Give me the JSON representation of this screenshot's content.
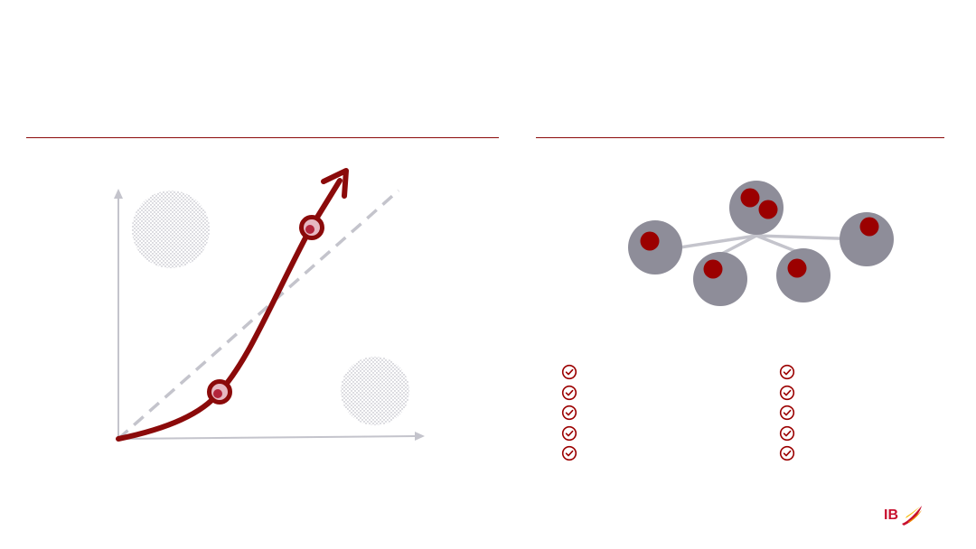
{
  "colors": {
    "accent": "#8b0a0a",
    "growth_curve": "#8b0a0a",
    "axis": "#c4c4cc",
    "dashed_line": "#c4c4cc",
    "node_gray": "#8e8d99",
    "node_dot": "#9b0000",
    "stipple": "#a9a9b4",
    "brand_red": "#c8102e",
    "brand_yellow": "#f5b700"
  },
  "left_diagram": {
    "description_icons": [
      "growth-curve",
      "linear-reference-line",
      "milestone-marker",
      "milestone-marker"
    ]
  },
  "right_diagram": {
    "nodes": [
      {
        "id": "center",
        "dots": 2
      },
      {
        "id": "left",
        "dots": 1
      },
      {
        "id": "right",
        "dots": 1
      },
      {
        "id": "bottom-left",
        "dots": 1
      },
      {
        "id": "bottom-right",
        "dots": 1
      }
    ]
  },
  "checklists": {
    "left": [
      {
        "icon": "check-circle-icon",
        "text": ""
      },
      {
        "icon": "check-circle-icon",
        "text": ""
      },
      {
        "icon": "check-circle-icon",
        "text": ""
      },
      {
        "icon": "check-circle-icon",
        "text": ""
      },
      {
        "icon": "check-circle-icon",
        "text": ""
      }
    ],
    "right": [
      {
        "icon": "check-circle-icon",
        "text": ""
      },
      {
        "icon": "check-circle-icon",
        "text": ""
      },
      {
        "icon": "check-circle-icon",
        "text": ""
      },
      {
        "icon": "check-circle-icon",
        "text": ""
      },
      {
        "icon": "check-circle-icon",
        "text": ""
      }
    ]
  },
  "logo": {
    "text": "IB",
    "icon": "iberia-wing-icon"
  }
}
